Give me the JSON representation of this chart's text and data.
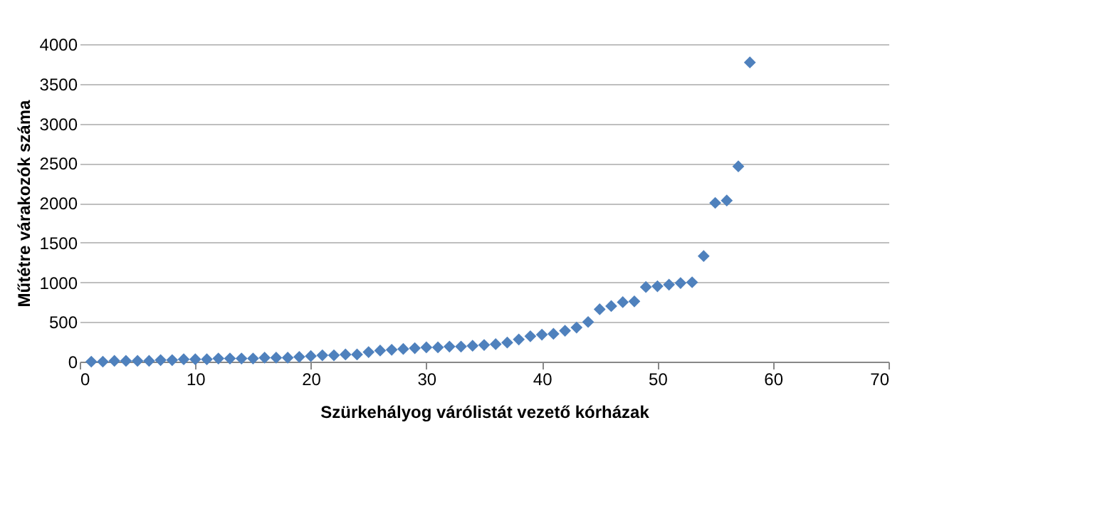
{
  "chart_data": {
    "type": "scatter",
    "xlabel": "Szürkehályog várólistát vezető kórházak",
    "ylabel": "Műtétre várakozók száma",
    "x": [
      1,
      2,
      3,
      4,
      5,
      6,
      7,
      8,
      9,
      10,
      11,
      12,
      13,
      14,
      15,
      16,
      17,
      18,
      19,
      20,
      21,
      22,
      23,
      24,
      25,
      26,
      27,
      28,
      29,
      30,
      31,
      32,
      33,
      34,
      35,
      36,
      37,
      38,
      39,
      40,
      41,
      42,
      43,
      44,
      45,
      46,
      47,
      48,
      49,
      50,
      51,
      52,
      53,
      54,
      55,
      56,
      57,
      58
    ],
    "series": [
      {
        "color": "#4f81bd",
        "values": [
          0,
          0,
          10,
          10,
          10,
          10,
          20,
          20,
          30,
          30,
          30,
          40,
          40,
          40,
          40,
          50,
          50,
          50,
          60,
          70,
          80,
          80,
          90,
          90,
          120,
          140,
          150,
          160,
          170,
          180,
          180,
          190,
          190,
          200,
          210,
          220,
          240,
          280,
          320,
          340,
          350,
          390,
          430,
          500,
          660,
          700,
          750,
          760,
          940,
          950,
          970,
          990,
          1000,
          1330,
          2000,
          2030,
          2460,
          3770
        ]
      }
    ],
    "xlim": [
      0,
      70
    ],
    "xticks": [
      0,
      10,
      20,
      30,
      40,
      50,
      60,
      70
    ],
    "ylim": [
      0,
      4000
    ],
    "yticks": [
      0,
      500,
      1000,
      1500,
      2000,
      2500,
      3000,
      3500,
      4000
    ],
    "grid": "y",
    "marker": "diamond"
  }
}
